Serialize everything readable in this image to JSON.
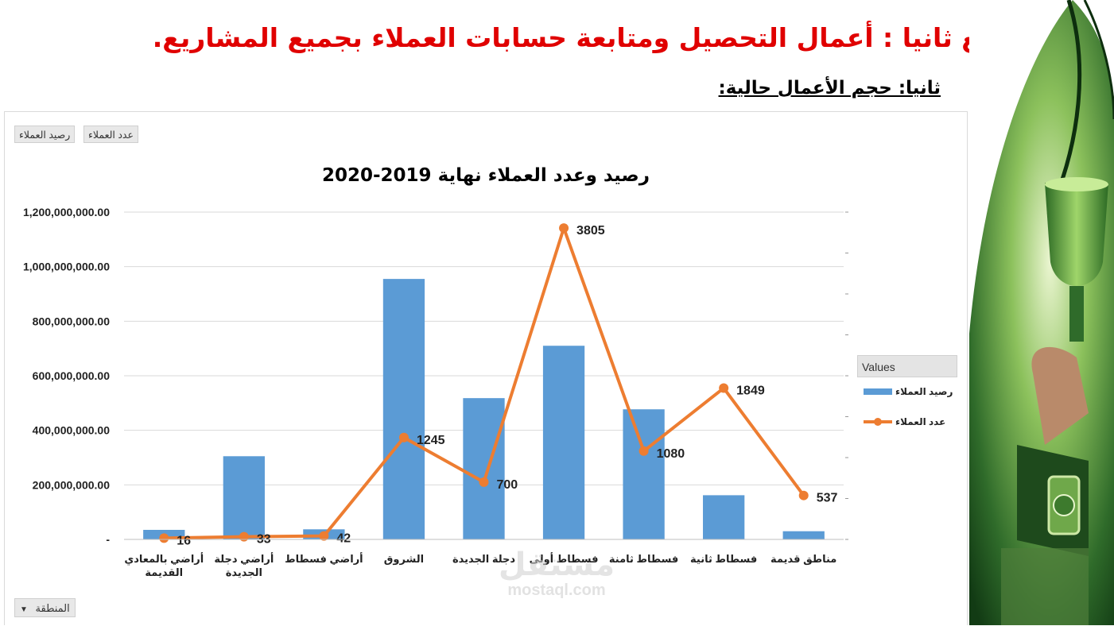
{
  "slide": {
    "title": "تابع ثانيا : أعمال التحصيل ومتابعة حسابات العملاء بجميع المشاريع.",
    "subtitle": "ثانيا: حجم الأعمال حالية:"
  },
  "pivot": {
    "field_buttons": [
      "عدد العملاء",
      "رصيد العملاء"
    ],
    "filter_label": "المنطقة",
    "legend_header": "Values"
  },
  "watermark": {
    "logo": "مستقل",
    "url": "mostaql.com"
  },
  "colors": {
    "bar": "#5b9bd5",
    "line": "#ed7d31",
    "title": "#e00000",
    "grid": "#d9d9d9"
  },
  "chart_data": {
    "type": "bar",
    "title": "رصيد وعدد العملاء نهاية 2019-2020",
    "categories": [
      "أراضي بالمعادي القديمة",
      "أراضي دجلة الجديدة",
      "أراضي فسطاط",
      "الشروق",
      "دجلة الجديدة",
      "فسطاط أولى",
      "فسطاط ثامنة",
      "فسطاط ثانية",
      "مناطق قديمة"
    ],
    "category_labels": [
      [
        "أراضي بالمعادي",
        "القديمة"
      ],
      [
        "أراضي دجلة",
        "الجديدة"
      ],
      [
        "أراضي فسطاط"
      ],
      [
        "الشروق"
      ],
      [
        "دجلة الجديدة"
      ],
      [
        "فسطاط أولى"
      ],
      [
        "فسطاط ثامنة"
      ],
      [
        "فسطاط ثانية"
      ],
      [
        "مناطق قديمة"
      ]
    ],
    "series": [
      {
        "name": "رصيد العملاء",
        "type": "bar",
        "axis": "primary",
        "values": [
          35000000,
          305000000,
          37000000,
          955000000,
          518000000,
          710000000,
          477000000,
          162000000,
          30000000
        ]
      },
      {
        "name": "عدد العملاء",
        "type": "line",
        "axis": "secondary",
        "values": [
          16,
          33,
          42,
          1245,
          700,
          3805,
          1080,
          1849,
          537
        ]
      }
    ],
    "y_ticks": [
      "-",
      "200,000,000.00",
      "400,000,000.00",
      "600,000,000.00",
      "800,000,000.00",
      "1,000,000,000.00",
      "1,200,000,000.00"
    ],
    "ylim": [
      0,
      1200000000
    ],
    "y2lim": [
      0,
      4000
    ],
    "grid": true,
    "legend": "right"
  }
}
